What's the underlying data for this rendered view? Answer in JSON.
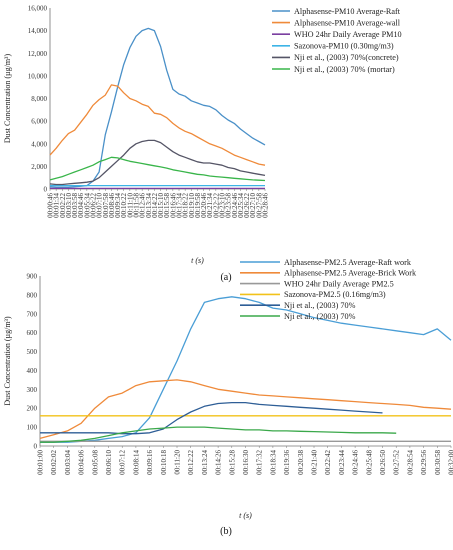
{
  "chart_data": [
    {
      "type": "line",
      "panel_label": "(a)",
      "xlabel": "t (s)",
      "ylabel": "Dust Concentration (µg/m³)",
      "ylim": [
        0,
        16000
      ],
      "yticks": [
        "0",
        "2,000",
        "4,000",
        "6,000",
        "8,000",
        "10,000",
        "12,000",
        "14,000",
        "16,000"
      ],
      "xticks": [
        "00:00:46",
        "00:01:34",
        "00:02:22",
        "00:03:10",
        "00:03:58",
        "00:04:46",
        "00:05:34",
        "00:06:22",
        "00:07:10",
        "00:07:58",
        "00:08:46",
        "00:09:34",
        "00:10:22",
        "00:11:10",
        "00:11:58",
        "00:12:46",
        "00:13:34",
        "00:14:22",
        "00:15:10",
        "00:15:58",
        "00:16:46",
        "00:17:34",
        "00:18:22",
        "00:19:10",
        "00:19:58",
        "00:20:46",
        "00:21:34",
        "00:22:22",
        "00:23:10",
        "00:23:58",
        "00:24:46",
        "00:25:34",
        "00:26:22",
        "00:27:10",
        "00:27:58",
        "00:28:46"
      ],
      "grid": false,
      "legend_position": "top-right",
      "series": [
        {
          "name": "Alphasense-PM10 Average-Raft",
          "color": "#4a90c8",
          "values": [
            200,
            150,
            150,
            150,
            200,
            250,
            300,
            700,
            1500,
            4800,
            6800,
            9000,
            11000,
            12500,
            13500,
            14000,
            14200,
            14000,
            12600,
            10500,
            8800,
            8400,
            8200,
            7800,
            7600,
            7400,
            7300,
            7000,
            6500,
            6100,
            5800,
            5300,
            4900,
            4500,
            4200,
            3900
          ]
        },
        {
          "name": "Alphasense-PM10 Average-wall",
          "color": "#ef8a3a",
          "values": [
            3000,
            3600,
            4300,
            4900,
            5200,
            5900,
            6600,
            7400,
            7900,
            8300,
            9200,
            9100,
            8500,
            8000,
            7800,
            7500,
            7300,
            6700,
            6600,
            6300,
            5800,
            5400,
            5100,
            4900,
            4600,
            4300,
            4000,
            3800,
            3600,
            3300,
            3000,
            2800,
            2600,
            2400,
            2200,
            2100
          ]
        },
        {
          "name": "WHO 24hr Daily Average PM10",
          "color": "#7b3fa0",
          "values": [
            50,
            50,
            50,
            50,
            50,
            50,
            50,
            50,
            50,
            50,
            50,
            50,
            50,
            50,
            50,
            50,
            50,
            50,
            50,
            50,
            50,
            50,
            50,
            50,
            50,
            50,
            50,
            50,
            50,
            50,
            50,
            50,
            50,
            50,
            50,
            50
          ]
        },
        {
          "name": "Sazonova-PM10 (0.30mg/m3)",
          "color": "#3db4e6",
          "values": [
            300,
            300,
            300,
            300,
            300,
            300,
            300,
            300,
            300,
            300,
            300,
            300,
            300,
            300,
            300,
            300,
            300,
            300,
            300,
            300,
            300,
            300,
            300,
            300,
            300,
            300,
            300,
            300,
            300,
            300,
            300,
            300,
            300,
            300,
            300,
            300
          ]
        },
        {
          "name": "Nji et al., (2003) 70%(concrete)",
          "color": "#555566",
          "values": [
            450,
            400,
            400,
            450,
            500,
            550,
            600,
            700,
            1000,
            1500,
            2000,
            2500,
            3000,
            3600,
            4000,
            4200,
            4300,
            4300,
            4100,
            3700,
            3300,
            3000,
            2800,
            2600,
            2400,
            2300,
            2300,
            2200,
            2100,
            1900,
            1800,
            1600,
            1500,
            1400,
            1300,
            1200
          ]
        },
        {
          "name": "Nji et al., (2003) 70% (mortar)",
          "color": "#39b54a",
          "values": [
            800,
            950,
            1100,
            1300,
            1500,
            1700,
            1900,
            2100,
            2400,
            2600,
            2800,
            2750,
            2600,
            2450,
            2350,
            2250,
            2150,
            2050,
            1950,
            1850,
            1700,
            1600,
            1500,
            1400,
            1300,
            1250,
            1150,
            1100,
            1050,
            1000,
            950,
            900,
            850,
            800,
            780,
            750
          ]
        }
      ]
    },
    {
      "type": "line",
      "panel_label": "(b)",
      "xlabel": "t (s)",
      "ylabel": "Dust Concentration (µg/m³)",
      "ylim": [
        0,
        900
      ],
      "yticks": [
        "0",
        "100",
        "200",
        "300",
        "400",
        "500",
        "600",
        "700",
        "800",
        "900"
      ],
      "xticks": [
        "00:01:00",
        "00:02:02",
        "00:03:04",
        "00:04:06",
        "00:05:08",
        "00:06:10",
        "00:07:12",
        "00:08:14",
        "00:09:16",
        "00:10:18",
        "00:11:20",
        "00:12:22",
        "00:13:24",
        "00:14:26",
        "00:15:28",
        "00:16:30",
        "00:17:32",
        "00:18:34",
        "00:19:36",
        "00:20:38",
        "00:21:40",
        "00:22:42",
        "00:23:44",
        "00:24:46",
        "00:25:48",
        "00:26:50",
        "00:27:52",
        "00:28:54",
        "00:29:56",
        "00:30:58",
        "00:32:00"
      ],
      "grid": false,
      "legend_position": "top-right",
      "series": [
        {
          "name": "Alphasense-PM2.5 Average-Raft work",
          "color": "#4a9ed6",
          "values": [
            20,
            20,
            20,
            25,
            30,
            40,
            50,
            70,
            150,
            300,
            450,
            620,
            760,
            780,
            790,
            780,
            760,
            730,
            720,
            700,
            680,
            665,
            650,
            640,
            630,
            620,
            610,
            600,
            590,
            620,
            560
          ]
        },
        {
          "name": "Alphasense-PM2.5 Average-Brick Work",
          "color": "#ef8a3a",
          "values": [
            40,
            60,
            80,
            120,
            200,
            260,
            280,
            320,
            340,
            345,
            350,
            340,
            320,
            300,
            290,
            280,
            270,
            265,
            260,
            255,
            250,
            245,
            240,
            235,
            230,
            225,
            220,
            215,
            205,
            200,
            195
          ]
        },
        {
          "name": "WHO 24hr Daily Average PM2.5",
          "color": "#999999",
          "values": [
            25,
            25,
            25,
            25,
            25,
            25,
            25,
            25,
            25,
            25,
            25,
            25,
            25,
            25,
            25,
            25,
            25,
            25,
            25,
            25,
            25,
            25,
            25,
            25,
            25,
            25,
            25,
            25,
            25,
            25,
            25
          ]
        },
        {
          "name": "Sazonova-PM2.5 (0.16mg/m3)",
          "color": "#f2c21a",
          "values": [
            160,
            160,
            160,
            160,
            160,
            160,
            160,
            160,
            160,
            160,
            160,
            160,
            160,
            160,
            160,
            160,
            160,
            160,
            160,
            160,
            160,
            160,
            160,
            160,
            160,
            160,
            160,
            160,
            160,
            160,
            160
          ]
        },
        {
          "name": "Nji et al., (2003) 70%",
          "color": "#2e5e96",
          "values": [
            70,
            70,
            70,
            70,
            70,
            70,
            65,
            65,
            70,
            90,
            140,
            180,
            210,
            225,
            230,
            230,
            220,
            215,
            210,
            205,
            200,
            195,
            190,
            185,
            180,
            175
          ]
        },
        {
          "name": "Nji et al., (2003) 70%",
          "color": "#3aa84a",
          "values": [
            20,
            20,
            25,
            30,
            40,
            55,
            70,
            80,
            90,
            95,
            100,
            100,
            100,
            95,
            90,
            85,
            85,
            80,
            80,
            78,
            76,
            74,
            72,
            70,
            70,
            70,
            68
          ]
        }
      ]
    }
  ]
}
